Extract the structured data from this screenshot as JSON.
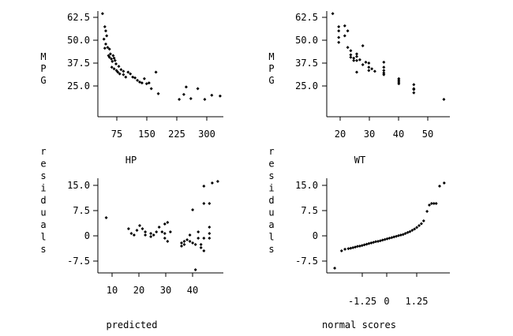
{
  "chart_data": [
    {
      "id": "mpg_hp",
      "type": "scatter",
      "xlabel": "HP",
      "ylabel": "MPG",
      "xticks": [
        "75",
        "150",
        "225",
        "300"
      ],
      "yticks": [
        "62.5",
        "50.0",
        "37.5",
        "25.0"
      ],
      "xlim": [
        55,
        325
      ],
      "ylim": [
        3,
        67
      ],
      "points": [
        [
          65,
          65.4
        ],
        [
          70,
          57.5
        ],
        [
          72,
          55.0
        ],
        [
          74,
          52.0
        ],
        [
          68,
          50.0
        ],
        [
          72,
          47.0
        ],
        [
          70,
          44.5
        ],
        [
          76,
          45.0
        ],
        [
          80,
          44.0
        ],
        [
          78,
          40.0
        ],
        [
          80,
          39.0
        ],
        [
          82,
          41.0
        ],
        [
          84,
          38.0
        ],
        [
          86,
          36.5
        ],
        [
          88,
          40.0
        ],
        [
          90,
          38.5
        ],
        [
          92,
          37.0
        ],
        [
          94,
          35.0
        ],
        [
          85,
          33.0
        ],
        [
          90,
          32.0
        ],
        [
          95,
          31.0
        ],
        [
          100,
          33.5
        ],
        [
          98,
          30.0
        ],
        [
          102,
          29.0
        ],
        [
          105,
          31.5
        ],
        [
          110,
          30.5
        ],
        [
          110,
          28.5
        ],
        [
          115,
          27.0
        ],
        [
          120,
          30.0
        ],
        [
          125,
          29.0
        ],
        [
          130,
          27.0
        ],
        [
          135,
          26.5
        ],
        [
          140,
          25.0
        ],
        [
          145,
          24.0
        ],
        [
          150,
          23.5
        ],
        [
          155,
          26.0
        ],
        [
          160,
          23.0
        ],
        [
          165,
          23.5
        ],
        [
          170,
          20.0
        ],
        [
          180,
          30.0
        ],
        [
          185,
          17.0
        ],
        [
          230,
          13.5
        ],
        [
          240,
          16.5
        ],
        [
          245,
          21.0
        ],
        [
          255,
          14.0
        ],
        [
          270,
          20.0
        ],
        [
          285,
          13.5
        ],
        [
          300,
          16.0
        ],
        [
          318,
          15.5
        ]
      ]
    },
    {
      "id": "mpg_wt",
      "type": "scatter",
      "xlabel": "WT",
      "ylabel": "MPG",
      "xticks": [
        "20",
        "30",
        "40",
        "50"
      ],
      "yticks": [
        "62.5",
        "50.0",
        "37.5",
        "25.0"
      ],
      "xlim": [
        16,
        57
      ],
      "ylim": [
        3,
        67
      ],
      "points": [
        [
          18,
          65.4
        ],
        [
          20,
          57.5
        ],
        [
          20,
          55.0
        ],
        [
          20,
          51.0
        ],
        [
          20,
          48.0
        ],
        [
          22,
          52.0
        ],
        [
          22,
          58.0
        ],
        [
          23,
          55.0
        ],
        [
          23,
          45.0
        ],
        [
          24,
          43.0
        ],
        [
          24,
          40.5
        ],
        [
          24,
          39.0
        ],
        [
          25,
          38.5
        ],
        [
          25,
          37.0
        ],
        [
          26,
          41.0
        ],
        [
          26,
          39.5
        ],
        [
          26,
          37.0
        ],
        [
          27,
          37.5
        ],
        [
          28,
          34.5
        ],
        [
          28,
          46.0
        ],
        [
          29,
          36.0
        ],
        [
          30,
          35.5
        ],
        [
          30,
          33.0
        ],
        [
          30,
          31.0
        ],
        [
          31,
          32.0
        ],
        [
          32,
          30.5
        ],
        [
          26,
          30.0
        ],
        [
          35,
          36.0
        ],
        [
          35,
          33.0
        ],
        [
          35,
          31.0
        ],
        [
          35,
          29.5
        ],
        [
          35,
          28.5
        ],
        [
          40,
          24.0
        ],
        [
          40,
          25.0
        ],
        [
          40,
          26.0
        ],
        [
          40,
          23.0
        ],
        [
          45,
          20.0
        ],
        [
          45,
          22.5
        ],
        [
          45,
          19.5
        ],
        [
          45,
          17.5
        ],
        [
          55,
          13.5
        ]
      ]
    },
    {
      "id": "resid_pred",
      "type": "scatter",
      "xlabel": "predicted",
      "ylabel": "residuals",
      "xticks": [
        "10",
        "20",
        "30",
        "40"
      ],
      "yticks": [
        "15.0",
        "7.5",
        "0",
        "-7.5"
      ],
      "xlim": [
        5,
        50
      ],
      "ylim": [
        -12,
        18
      ],
      "points": [
        [
          8,
          5.5
        ],
        [
          16,
          2.0
        ],
        [
          17,
          0.5
        ],
        [
          18,
          0.0
        ],
        [
          19,
          1.5
        ],
        [
          20,
          3.0
        ],
        [
          21,
          2.0
        ],
        [
          22,
          1.0
        ],
        [
          22,
          0.0
        ],
        [
          24,
          -0.5
        ],
        [
          24,
          0.5
        ],
        [
          25,
          0.0
        ],
        [
          26,
          1.0
        ],
        [
          27,
          2.5
        ],
        [
          28,
          1.0
        ],
        [
          29,
          0.5
        ],
        [
          29,
          -1.0
        ],
        [
          29,
          3.5
        ],
        [
          30,
          4.0
        ],
        [
          30,
          -2.0
        ],
        [
          31,
          1.0
        ],
        [
          35,
          -2.5
        ],
        [
          35,
          -3.5
        ],
        [
          36,
          -2.0
        ],
        [
          36,
          -3.0
        ],
        [
          37,
          -1.5
        ],
        [
          38,
          -2.0
        ],
        [
          38,
          0.0
        ],
        [
          39,
          8.0
        ],
        [
          39,
          -2.5
        ],
        [
          40,
          -11.0
        ],
        [
          40,
          -3.0
        ],
        [
          41,
          -1.0
        ],
        [
          41,
          1.0
        ],
        [
          42,
          -3.0
        ],
        [
          42,
          -4.0
        ],
        [
          43,
          -5.0
        ],
        [
          43,
          -1.0
        ],
        [
          43,
          10.0
        ],
        [
          43,
          15.5
        ],
        [
          45,
          0.5
        ],
        [
          45,
          -1.0
        ],
        [
          45,
          10.0
        ],
        [
          45,
          2.5
        ],
        [
          46,
          16.5
        ],
        [
          48,
          17.0
        ]
      ]
    },
    {
      "id": "resid_normal",
      "type": "scatter",
      "xlabel": "normal scores",
      "ylabel": "residuals",
      "xticks": [
        "-1.25",
        "0",
        "1.25"
      ],
      "yticks": [
        "15.0",
        "7.5",
        "0",
        "-7.5"
      ],
      "xlim": [
        -2.9,
        2.5
      ],
      "ylim": [
        -12,
        18
      ],
      "points": [
        [
          -2.55,
          -10.5
        ],
        [
          -2.25,
          -5.0
        ],
        [
          -2.1,
          -4.5
        ],
        [
          -1.95,
          -4.3
        ],
        [
          -1.85,
          -4.2
        ],
        [
          -1.75,
          -4.0
        ],
        [
          -1.65,
          -3.8
        ],
        [
          -1.55,
          -3.6
        ],
        [
          -1.45,
          -3.5
        ],
        [
          -1.35,
          -3.3
        ],
        [
          -1.25,
          -3.1
        ],
        [
          -1.15,
          -2.9
        ],
        [
          -1.05,
          -2.7
        ],
        [
          -0.95,
          -2.5
        ],
        [
          -0.85,
          -2.3
        ],
        [
          -0.75,
          -2.1
        ],
        [
          -0.65,
          -2.0
        ],
        [
          -0.55,
          -1.8
        ],
        [
          -0.45,
          -1.6
        ],
        [
          -0.35,
          -1.4
        ],
        [
          -0.25,
          -1.2
        ],
        [
          -0.15,
          -1.0
        ],
        [
          -0.05,
          -0.8
        ],
        [
          0.05,
          -0.6
        ],
        [
          0.15,
          -0.4
        ],
        [
          0.25,
          -0.2
        ],
        [
          0.35,
          0.0
        ],
        [
          0.45,
          0.2
        ],
        [
          0.55,
          0.5
        ],
        [
          0.65,
          0.8
        ],
        [
          0.75,
          1.1
        ],
        [
          0.85,
          1.5
        ],
        [
          0.95,
          1.9
        ],
        [
          1.05,
          2.4
        ],
        [
          1.15,
          3.0
        ],
        [
          1.25,
          3.6
        ],
        [
          1.35,
          4.5
        ],
        [
          1.5,
          7.5
        ],
        [
          1.6,
          9.5
        ],
        [
          1.7,
          10.0
        ],
        [
          1.8,
          10.0
        ],
        [
          1.9,
          10.0
        ],
        [
          2.05,
          15.5
        ],
        [
          2.25,
          16.5
        ]
      ]
    }
  ]
}
